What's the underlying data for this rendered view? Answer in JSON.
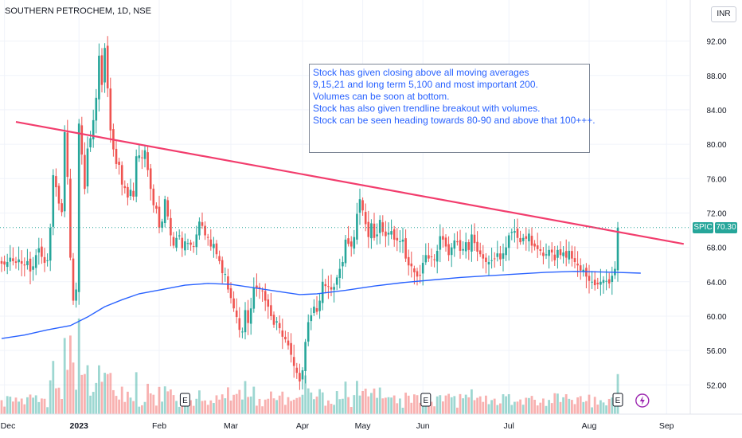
{
  "header": {
    "title": "SOUTHERN PETROCHEM, 1D, NSE",
    "currency": "INR"
  },
  "price_tag": {
    "symbol": "SPIC",
    "value": "70.30"
  },
  "note": {
    "lines": [
      "Stock has given closing above all moving averages",
      "9,15,21 and long term 5,100 and most important 200.",
      "Volumes can be soon at bottom.",
      "Stock has also given trendline breakout with volumes.",
      "Stock can be seen heading towards 80-90 and above that 100+++."
    ]
  },
  "colors": {
    "up": "#26a69a",
    "down": "#ef5350",
    "trendline": "#f23d6d",
    "ma": "#2962ff",
    "text": "#131722"
  },
  "chart_data": {
    "type": "candlestick",
    "yaxis": {
      "ticks": [
        "92.00",
        "88.00",
        "84.00",
        "80.00",
        "76.00",
        "72.00",
        "68.00",
        "64.00",
        "60.00",
        "56.00",
        "52.00"
      ],
      "ylim": [
        48.6,
        94.0
      ]
    },
    "xaxis": {
      "ticks": [
        "Dec",
        "2023",
        "Feb",
        "Mar",
        "Apr",
        "May",
        "Jun",
        "Jul",
        "Aug",
        "Sep"
      ]
    },
    "last_price": 70.3,
    "closes": [
      66.1,
      66.0,
      66.3,
      66.8,
      66.4,
      66.2,
      66.6,
      66.1,
      65.9,
      66.4,
      65.2,
      65.8,
      67.1,
      67.9,
      66.9,
      66.2,
      66.5,
      70.3,
      76.4,
      75.0,
      73.1,
      72.1,
      81.4,
      76.2,
      66.8,
      61.8,
      63.1,
      82.4,
      78.8,
      74.8,
      79.5,
      80.7,
      82.8,
      85.4,
      90.3,
      86.9,
      91.2,
      86.5,
      81.6,
      79.4,
      77.7,
      77.6,
      75.3,
      74.9,
      73.8,
      74.7,
      73.9,
      78.6,
      78.7,
      78.4,
      79.3,
      77.0,
      74.8,
      72.9,
      72.5,
      70.3,
      71.0,
      73.6,
      71.6,
      69.4,
      68.2,
      69.1,
      69.4,
      67.9,
      68.7,
      68.5,
      68.3,
      68.1,
      69.5,
      71.0,
      70.5,
      69.4,
      69.2,
      68.1,
      68.4,
      67.2,
      66.4,
      65.0,
      64.9,
      63.1,
      62.1,
      60.9,
      59.9,
      58.4,
      58.2,
      60.7,
      59.2,
      60.9,
      63.3,
      63.2,
      63.2,
      62.9,
      61.8,
      61.1,
      60.0,
      59.0,
      59.4,
      58.6,
      57.6,
      57.3,
      56.6,
      55.5,
      54.2,
      53.4,
      52.4,
      53.7,
      57.0,
      59.3,
      60.1,
      61.1,
      60.5,
      61.8,
      64.0,
      63.5,
      63.4,
      63.1,
      63.4,
      64.5,
      65.5,
      66.3,
      68.9,
      68.4,
      68.1,
      69.2,
      71.9,
      73.6,
      72.3,
      70.7,
      69.2,
      70.8,
      69.1,
      69.5,
      71.2,
      69.8,
      69.3,
      69.7,
      69.9,
      68.9,
      68.8,
      68.7,
      68.9,
      66.7,
      65.9,
      65.8,
      65.1,
      64.6,
      64.7,
      66.2,
      67.1,
      66.7,
      66.9,
      66.6,
      67.6,
      69.3,
      68.9,
      68.1,
      67.1,
      68.0,
      68.8,
      68.6,
      67.6,
      67.8,
      68.6,
      67.7,
      69.5,
      68.5,
      67.5,
      67.2,
      66.7,
      66.3,
      66.3,
      66.5,
      66.7,
      67.3,
      66.6,
      67.3,
      68.0,
      69.4,
      69.8,
      69.9,
      69.1,
      68.6,
      69.1,
      69.0,
      69.6,
      68.2,
      68.1,
      67.8,
      67.6,
      67.0,
      67.2,
      67.7,
      67.4,
      66.5,
      67.7,
      67.1,
      67.4,
      66.8,
      67.6,
      66.7,
      66.3,
      65.9,
      65.3,
      65.4,
      64.6,
      64.1,
      64.0,
      63.6,
      63.7,
      64.0,
      64.2,
      64.1,
      63.8,
      64.7,
      65.5,
      70.3
    ],
    "sma200": {
      "start": 63.0,
      "points": [
        [
          0,
          57.4
        ],
        [
          8,
          57.8
        ],
        [
          16,
          58.4
        ],
        [
          24,
          58.9
        ],
        [
          30,
          59.9
        ],
        [
          36,
          61.1
        ],
        [
          42,
          61.9
        ],
        [
          48,
          62.6
        ],
        [
          56,
          63.1
        ],
        [
          64,
          63.6
        ],
        [
          72,
          63.8
        ],
        [
          80,
          63.7
        ],
        [
          88,
          63.3
        ],
        [
          96,
          62.9
        ],
        [
          104,
          62.5
        ],
        [
          110,
          62.6
        ],
        [
          120,
          63.0
        ],
        [
          130,
          63.5
        ],
        [
          140,
          63.9
        ],
        [
          150,
          64.2
        ],
        [
          160,
          64.5
        ],
        [
          170,
          64.7
        ],
        [
          180,
          64.9
        ],
        [
          190,
          65.1
        ],
        [
          200,
          65.2
        ],
        [
          214,
          65.1
        ],
        [
          223,
          65.0
        ]
      ]
    },
    "trendline": {
      "from": [
        5,
        82.6
      ],
      "to": [
        238,
        68.4
      ]
    },
    "earnings_markers": [
      "E",
      "E",
      "E"
    ]
  }
}
